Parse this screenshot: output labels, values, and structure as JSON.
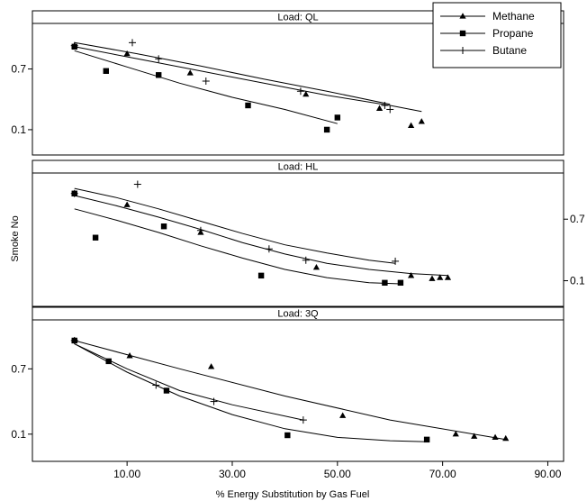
{
  "chart_data": {
    "type": "scatter",
    "layout": "trellis-3-panels",
    "xlabel": "% Energy Substitution by Gas Fuel",
    "ylabel": "Smoke No",
    "xlim": [
      -8,
      93
    ],
    "xticks": [
      10,
      30,
      50,
      70,
      90
    ],
    "xtick_labels": [
      "10.00",
      "30.00",
      "50.00",
      "70.00",
      "90.00"
    ],
    "legend": {
      "position": "top-right",
      "entries": [
        {
          "name": "Methane",
          "marker": "triangle"
        },
        {
          "name": "Propane",
          "marker": "square"
        },
        {
          "name": "Butane",
          "marker": "plus"
        }
      ]
    },
    "panels": [
      {
        "title": "Load: QL",
        "ylim": [
          -0.15,
          1.15
        ],
        "yticks": [
          0.1,
          0.7
        ],
        "ytick_labels": [
          "0.1",
          "0.7"
        ],
        "ytick_side": "left",
        "series": [
          {
            "name": "Methane",
            "x": [
              0,
              10,
              22,
              44,
              58,
              64,
              66
            ],
            "y": [
              0.93,
              0.85,
              0.66,
              0.45,
              0.31,
              0.14,
              0.18
            ]
          },
          {
            "name": "Propane",
            "x": [
              0,
              6,
              16,
              33,
              48,
              50
            ],
            "y": [
              0.92,
              0.68,
              0.64,
              0.34,
              0.1,
              0.22
            ]
          },
          {
            "name": "Butane",
            "x": [
              0,
              11,
              16,
              25,
              43,
              59,
              60
            ],
            "y": [
              0.93,
              0.96,
              0.8,
              0.58,
              0.48,
              0.34,
              0.3
            ]
          }
        ],
        "fits": [
          {
            "name": "Methane",
            "x": [
              0,
              12,
              24,
              36,
              48,
              60,
              66
            ],
            "y": [
              0.92,
              0.8,
              0.68,
              0.56,
              0.44,
              0.34,
              0.28
            ]
          },
          {
            "name": "Propane",
            "x": [
              0,
              10,
              20,
              30,
              40,
              50
            ],
            "y": [
              0.88,
              0.72,
              0.56,
              0.42,
              0.3,
              0.16
            ]
          },
          {
            "name": "Butane",
            "x": [
              0,
              12,
              24,
              36,
              48,
              60
            ],
            "y": [
              0.96,
              0.85,
              0.73,
              0.6,
              0.48,
              0.35
            ]
          }
        ]
      },
      {
        "title": "Load: HL",
        "ylim": [
          -0.15,
          1.15
        ],
        "yticks": [
          0.1,
          0.7
        ],
        "ytick_labels": [
          "0.1",
          "0.7"
        ],
        "ytick_side": "right",
        "series": [
          {
            "name": "Methane",
            "x": [
              0,
              10,
              24,
              46,
              64,
              68,
              69.5,
              71
            ],
            "y": [
              0.95,
              0.84,
              0.57,
              0.23,
              0.15,
              0.12,
              0.13,
              0.13
            ]
          },
          {
            "name": "Propane",
            "x": [
              0,
              4,
              17,
              35.5,
              59,
              62
            ],
            "y": [
              0.95,
              0.52,
              0.63,
              0.15,
              0.08,
              0.08
            ]
          },
          {
            "name": "Butane",
            "x": [
              0,
              12,
              24,
              37,
              44,
              61
            ],
            "y": [
              0.95,
              1.04,
              0.59,
              0.41,
              0.3,
              0.29
            ]
          }
        ],
        "fits": [
          {
            "name": "Methane",
            "x": [
              0,
              8,
              16,
              24,
              32,
              40,
              48,
              56,
              64,
              71
            ],
            "y": [
              0.93,
              0.83,
              0.72,
              0.6,
              0.47,
              0.36,
              0.27,
              0.21,
              0.17,
              0.15
            ]
          },
          {
            "name": "Propane",
            "x": [
              0,
              8,
              16,
              24,
              32,
              40,
              48,
              56,
              62
            ],
            "y": [
              0.8,
              0.69,
              0.57,
              0.44,
              0.32,
              0.21,
              0.13,
              0.08,
              0.07
            ]
          },
          {
            "name": "Butane",
            "x": [
              0,
              8,
              16,
              24,
              32,
              40,
              48,
              56,
              61
            ],
            "y": [
              1.0,
              0.91,
              0.8,
              0.68,
              0.56,
              0.45,
              0.37,
              0.3,
              0.27
            ]
          }
        ]
      },
      {
        "title": "Load: 3Q",
        "ylim": [
          -0.15,
          1.15
        ],
        "yticks": [
          0.1,
          0.7
        ],
        "ytick_labels": [
          "0.1",
          "0.7"
        ],
        "ytick_side": "left",
        "series": [
          {
            "name": "Methane",
            "x": [
              0,
              10.5,
              26,
              51,
              72.5,
              76,
              80,
              82
            ],
            "y": [
              0.96,
              0.82,
              0.72,
              0.27,
              0.1,
              0.08,
              0.07,
              0.06
            ]
          },
          {
            "name": "Propane",
            "x": [
              0,
              6.5,
              17.5,
              40.5,
              67
            ],
            "y": [
              0.96,
              0.77,
              0.5,
              0.09,
              0.05
            ]
          },
          {
            "name": "Butane",
            "x": [
              0,
              15.5,
              26.5,
              43.5
            ],
            "y": [
              0.96,
              0.55,
              0.4,
              0.23
            ]
          }
        ],
        "fits": [
          {
            "name": "Methane",
            "x": [
              0,
              20,
              40,
              60,
              82
            ],
            "y": [
              0.96,
              0.7,
              0.45,
              0.23,
              0.05
            ]
          },
          {
            "name": "Propane",
            "x": [
              0,
              10,
              20,
              30,
              40,
              50,
              60,
              67
            ],
            "y": [
              0.93,
              0.67,
              0.45,
              0.28,
              0.15,
              0.07,
              0.04,
              0.03
            ]
          },
          {
            "name": "Butane",
            "x": [
              0,
              10,
              20,
              30,
              43.5
            ],
            "y": [
              0.93,
              0.7,
              0.5,
              0.37,
              0.23
            ]
          }
        ]
      }
    ]
  }
}
